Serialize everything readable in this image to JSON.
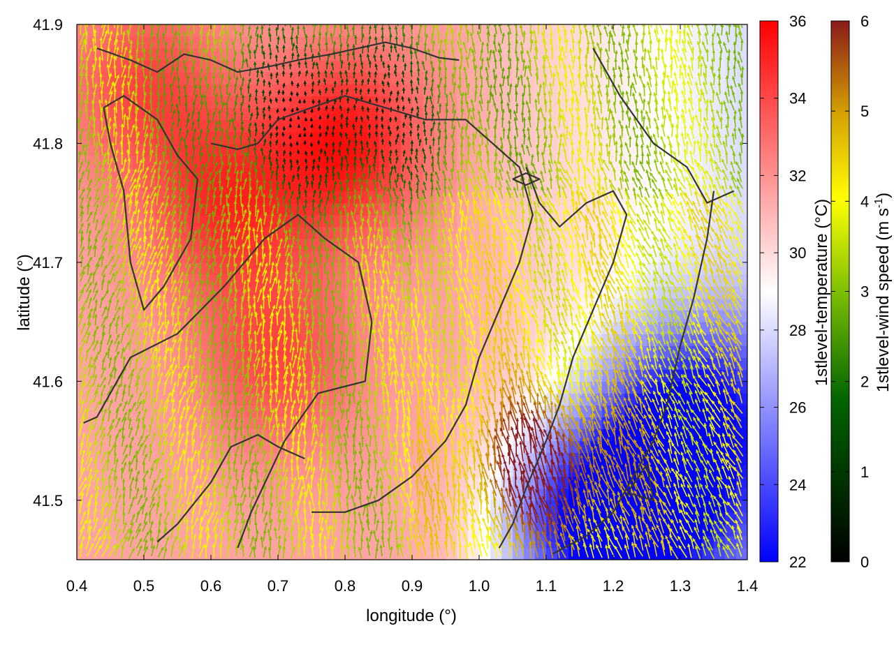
{
  "chart_data": {
    "type": "heatmap",
    "title": "",
    "xlabel": "longitude (°)",
    "ylabel": "latitude (°)",
    "xlim": [
      0.4,
      1.4
    ],
    "ylim": [
      41.45,
      41.9
    ],
    "x_ticks": [
      "0.4",
      "0.5",
      "0.6",
      "0.7",
      "0.8",
      "0.9",
      "1.0",
      "1.1",
      "1.2",
      "1.3",
      "1.4"
    ],
    "y_ticks": [
      "41.5",
      "41.6",
      "41.7",
      "41.8",
      "41.9"
    ],
    "temperature_colorbar": {
      "label": "1stlevel-temperature (°C)",
      "range": [
        22,
        36
      ],
      "ticks": [
        "22",
        "24",
        "26",
        "28",
        "30",
        "32",
        "34",
        "36"
      ],
      "colors": [
        "#0000ff",
        "#ffffff",
        "#ff0000"
      ]
    },
    "wind_colorbar": {
      "label_main": "1stlevel-wind speed (m s",
      "label_sup": "-1",
      "label_end": ")",
      "range": [
        0,
        6
      ],
      "ticks": [
        "0",
        "1",
        "2",
        "3",
        "4",
        "5",
        "6"
      ],
      "colors": [
        "#000000",
        "#006400",
        "#7fbf00",
        "#ffff00",
        "#d4a000",
        "#8b1a1a"
      ]
    },
    "temperature_field": {
      "description_of_pattern": "warm (~33-35 °C) in the north-west and centre, cool (~22-26 °C) in the south-east",
      "hot_spots": [
        {
          "lon": 0.8,
          "lat": 41.8,
          "t": 35.5
        },
        {
          "lon": 0.62,
          "lat": 41.75,
          "t": 34.5
        },
        {
          "lon": 0.7,
          "lat": 41.62,
          "t": 34.0
        },
        {
          "lon": 0.5,
          "lat": 41.85,
          "t": 34.0
        }
      ],
      "cold_spots": [
        {
          "lon": 1.25,
          "lat": 41.5,
          "t": 22.5
        },
        {
          "lon": 1.32,
          "lat": 41.58,
          "t": 23.5
        },
        {
          "lon": 1.15,
          "lat": 41.47,
          "t": 24.0
        }
      ]
    },
    "wind_field": {
      "general_direction": "from south towards north, converging on the warm area around lon 0.8",
      "strong_wind_area": {
        "lon": 1.1,
        "lat": 41.52,
        "speed": 5.8
      },
      "weak_wind_area": {
        "lon": 0.78,
        "lat": 41.82,
        "speed": 0.5
      }
    },
    "contour_lines": [
      [
        [
          0.41,
          41.565
        ],
        [
          0.43,
          41.57
        ],
        [
          0.48,
          41.62
        ],
        [
          0.55,
          41.64
        ],
        [
          0.62,
          41.68
        ],
        [
          0.68,
          41.72
        ],
        [
          0.73,
          41.74
        ],
        [
          0.77,
          41.72
        ],
        [
          0.82,
          41.7
        ],
        [
          0.84,
          41.65
        ],
        [
          0.83,
          41.6
        ],
        [
          0.76,
          41.59
        ],
        [
          0.71,
          41.55
        ],
        [
          0.66,
          41.49
        ],
        [
          0.64,
          41.46
        ]
      ],
      [
        [
          0.52,
          41.465
        ],
        [
          0.55,
          41.48
        ],
        [
          0.6,
          41.515
        ],
        [
          0.63,
          41.545
        ],
        [
          0.67,
          41.555
        ],
        [
          0.7,
          41.545
        ],
        [
          0.74,
          41.535
        ]
      ],
      [
        [
          0.43,
          41.88
        ],
        [
          0.48,
          41.87
        ],
        [
          0.52,
          41.86
        ],
        [
          0.56,
          41.875
        ],
        [
          0.6,
          41.87
        ],
        [
          0.64,
          41.86
        ],
        [
          0.69,
          41.865
        ],
        [
          0.73,
          41.87
        ],
        [
          0.78,
          41.875
        ],
        [
          0.82,
          41.88
        ],
        [
          0.86,
          41.885
        ],
        [
          0.9,
          41.88
        ],
        [
          0.94,
          41.872
        ],
        [
          0.97,
          41.87
        ]
      ],
      [
        [
          0.6,
          41.8
        ],
        [
          0.64,
          41.795
        ],
        [
          0.67,
          41.8
        ],
        [
          0.7,
          41.82
        ],
        [
          0.75,
          41.83
        ],
        [
          0.8,
          41.84
        ],
        [
          0.86,
          41.83
        ],
        [
          0.92,
          41.82
        ],
        [
          0.98,
          41.82
        ],
        [
          1.02,
          41.8
        ],
        [
          1.06,
          41.78
        ],
        [
          1.08,
          41.74
        ],
        [
          1.06,
          41.7
        ],
        [
          1.03,
          41.66
        ],
        [
          1.0,
          41.62
        ],
        [
          0.98,
          41.58
        ],
        [
          0.95,
          41.55
        ],
        [
          0.9,
          41.52
        ],
        [
          0.85,
          41.5
        ],
        [
          0.8,
          41.49
        ],
        [
          0.75,
          41.49
        ]
      ],
      [
        [
          1.07,
          41.78
        ],
        [
          1.09,
          41.75
        ],
        [
          1.12,
          41.73
        ],
        [
          1.16,
          41.75
        ],
        [
          1.2,
          41.76
        ],
        [
          1.22,
          41.74
        ],
        [
          1.2,
          41.7
        ],
        [
          1.17,
          41.66
        ],
        [
          1.14,
          41.62
        ],
        [
          1.12,
          41.58
        ],
        [
          1.1,
          41.55
        ],
        [
          1.07,
          41.51
        ],
        [
          1.05,
          41.48
        ],
        [
          1.03,
          41.46
        ]
      ],
      [
        [
          1.17,
          41.88
        ],
        [
          1.21,
          41.84
        ],
        [
          1.26,
          41.8
        ],
        [
          1.31,
          41.78
        ],
        [
          1.34,
          41.75
        ],
        [
          1.38,
          41.76
        ]
      ],
      [
        [
          1.35,
          41.76
        ],
        [
          1.34,
          41.72
        ],
        [
          1.32,
          41.67
        ],
        [
          1.3,
          41.63
        ],
        [
          1.28,
          41.58
        ],
        [
          1.26,
          41.55
        ],
        [
          1.24,
          41.53
        ],
        [
          1.22,
          41.51
        ],
        [
          1.2,
          41.49
        ],
        [
          1.16,
          41.47
        ],
        [
          1.11,
          41.455
        ]
      ],
      [
        [
          1.05,
          41.77
        ],
        [
          1.07,
          41.765
        ],
        [
          1.09,
          41.77
        ],
        [
          1.07,
          41.775
        ],
        [
          1.05,
          41.77
        ]
      ],
      [
        [
          1.22,
          41.505
        ],
        [
          1.25,
          41.53
        ],
        [
          1.26,
          41.5
        ],
        [
          1.23,
          41.505
        ],
        [
          1.22,
          41.505
        ]
      ],
      [
        [
          0.44,
          41.83
        ],
        [
          0.47,
          41.84
        ],
        [
          0.52,
          41.82
        ],
        [
          0.55,
          41.79
        ],
        [
          0.58,
          41.77
        ],
        [
          0.57,
          41.72
        ],
        [
          0.53,
          41.68
        ],
        [
          0.5,
          41.66
        ],
        [
          0.48,
          41.7
        ],
        [
          0.47,
          41.76
        ],
        [
          0.45,
          41.8
        ],
        [
          0.44,
          41.83
        ]
      ]
    ]
  }
}
